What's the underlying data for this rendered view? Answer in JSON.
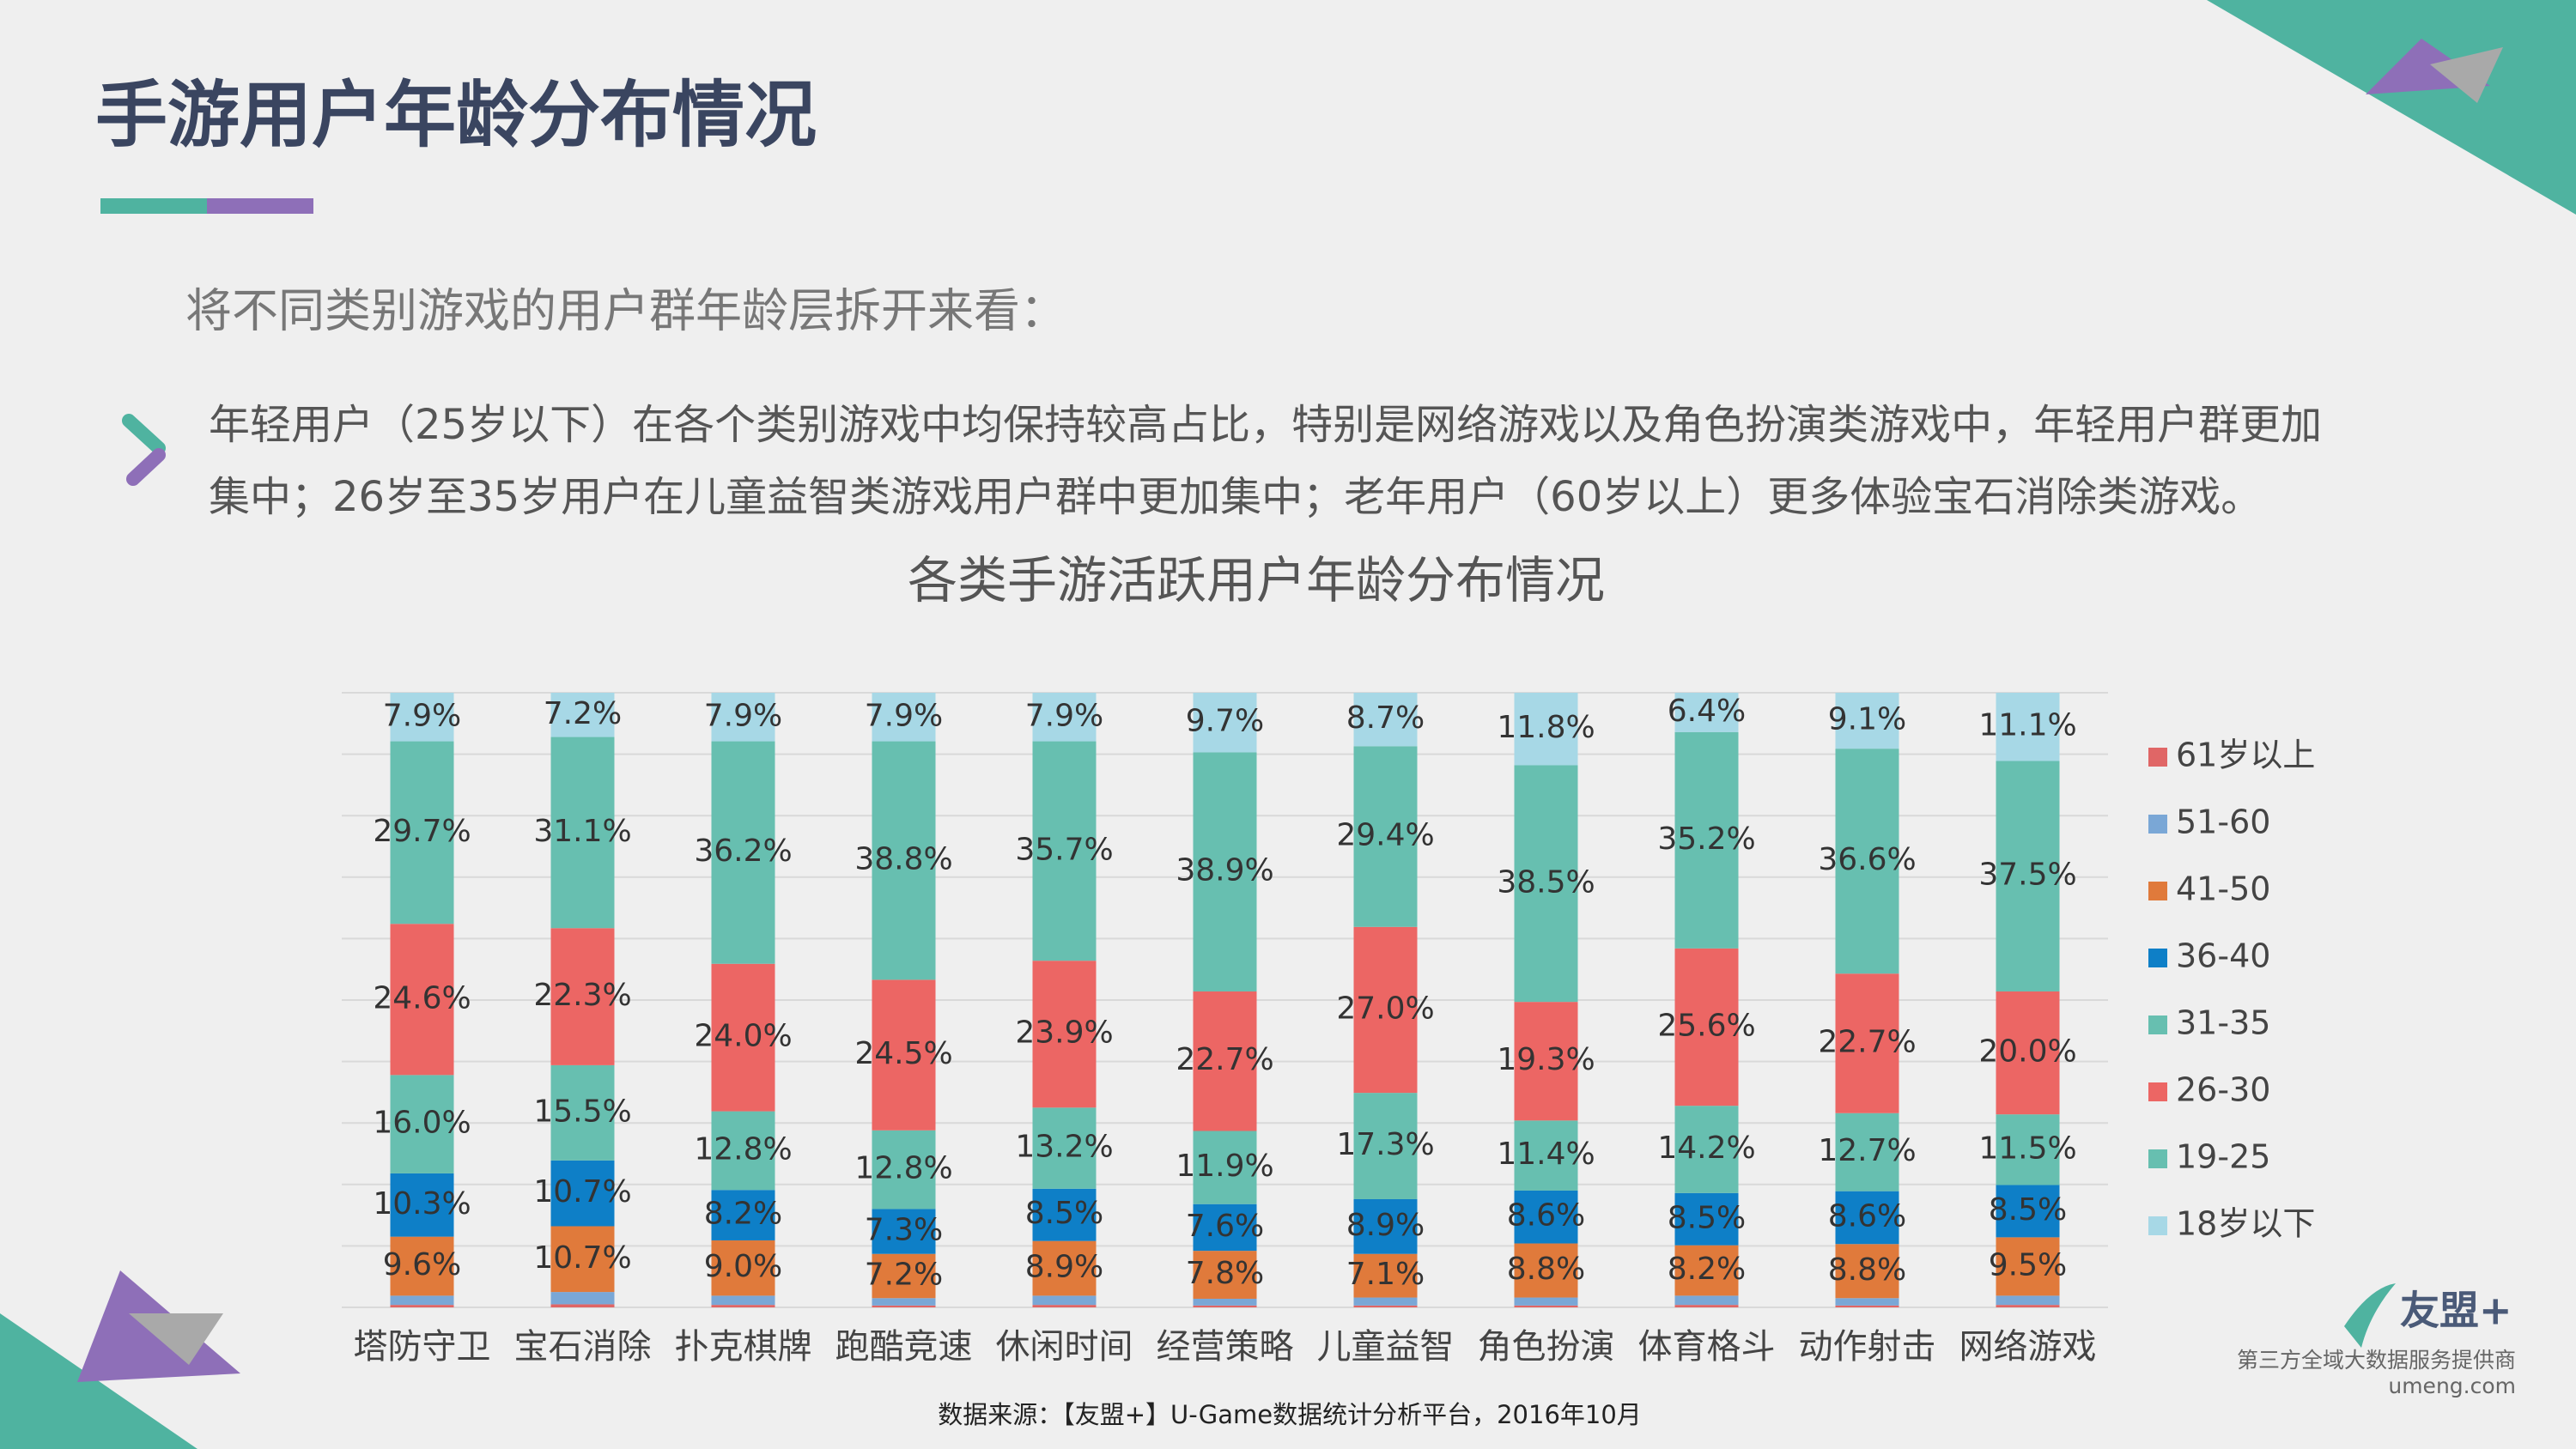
{
  "header": {
    "title": "手游用户年龄分布情况"
  },
  "subtitle": "将不同类别游戏的用户群年龄层拆开来看：",
  "bullet": {
    "lines": [
      "年轻用户（25岁以下）在各个类别游戏中均保持较高占比，特别是网络游戏以及角色扮演类游戏中，年轻用户群更加",
      "集中；26岁至35岁用户在儿童益智类游戏用户群中更加集中；老年用户（60岁以上）更多体验宝石消除类游戏。"
    ]
  },
  "chart_data": {
    "type": "bar",
    "stacked": true,
    "title": "各类手游活跃用户年龄分布情况",
    "categories": [
      "塔防守卫",
      "宝石消除",
      "扑克棋牌",
      "跑酷竞速",
      "休闲时间",
      "经营策略",
      "儿童益智",
      "角色扮演",
      "体育格斗",
      "动作射击",
      "网络游戏"
    ],
    "series": [
      {
        "name": "61岁以上",
        "color": "#e06666",
        "values": [
          0.4,
          0.5,
          0.4,
          0.3,
          0.4,
          0.3,
          0.3,
          0.3,
          0.4,
          0.3,
          0.4
        ]
      },
      {
        "name": "51-60",
        "color": "#7aa7d6",
        "values": [
          1.5,
          2.0,
          1.5,
          1.2,
          1.5,
          1.1,
          1.3,
          1.3,
          1.5,
          1.2,
          1.5
        ]
      },
      {
        "name": "41-50",
        "color": "#e07a3b",
        "values": [
          9.6,
          10.7,
          9.0,
          7.2,
          8.9,
          7.8,
          7.1,
          8.8,
          8.2,
          8.8,
          9.5
        ],
        "value_labels": [
          "9.6%",
          "10.7%",
          "9.0%",
          "7.2%",
          "8.9%",
          "7.8%",
          "7.1%",
          "8.8%",
          "8.2%",
          "8.8%",
          "9.5%"
        ]
      },
      {
        "name": "36-40",
        "color": "#0e7fc7",
        "values": [
          10.3,
          10.7,
          8.2,
          7.3,
          8.5,
          7.6,
          8.9,
          8.6,
          8.5,
          8.6,
          8.5
        ],
        "value_labels": [
          "10.3%",
          "10.7%",
          "8.2%",
          "7.3%",
          "8.5%",
          "7.6%",
          "8.9%",
          "8.6%",
          "8.5%",
          "8.6%",
          "8.5%"
        ]
      },
      {
        "name": "31-35",
        "color": "#67bfb0",
        "values": [
          16.0,
          15.5,
          12.8,
          12.8,
          13.2,
          11.9,
          17.3,
          11.4,
          14.2,
          12.7,
          11.5
        ],
        "value_labels": [
          "16.0%",
          "15.5%",
          "12.8%",
          "12.8%",
          "13.2%",
          "11.9%",
          "17.3%",
          "11.4%",
          "14.2%",
          "12.7%",
          "11.5%"
        ]
      },
      {
        "name": "26-30",
        "color": "#ec6664",
        "values": [
          24.6,
          22.3,
          24.0,
          24.5,
          23.9,
          22.7,
          27.0,
          19.3,
          25.6,
          22.7,
          20.0
        ],
        "value_labels": [
          "24.6%",
          "22.3%",
          "24.0%",
          "24.5%",
          "23.9%",
          "22.7%",
          "27.0%",
          "19.3%",
          "25.6%",
          "22.7%",
          "20.0%"
        ]
      },
      {
        "name": "19-25",
        "color": "#67bfb0",
        "values": [
          29.7,
          31.1,
          36.2,
          38.8,
          35.7,
          38.9,
          29.4,
          38.5,
          35.2,
          36.6,
          37.5
        ],
        "value_labels": [
          "29.7%",
          "31.1%",
          "36.2%",
          "38.8%",
          "35.7%",
          "38.9%",
          "29.4%",
          "38.5%",
          "35.2%",
          "36.6%",
          "37.5%"
        ]
      },
      {
        "name": "18岁以下",
        "color": "#a7d8e6",
        "values": [
          7.9,
          7.2,
          7.9,
          7.9,
          7.9,
          9.7,
          8.7,
          11.8,
          6.4,
          9.1,
          11.1
        ],
        "value_labels": [
          "7.9%",
          "7.2%",
          "7.9%",
          "7.9%",
          "7.9%",
          "9.7%",
          "8.7%",
          "11.8%",
          "6.4%",
          "9.1%",
          "11.1%"
        ]
      }
    ],
    "ylim": [
      0,
      100
    ],
    "yticks": [
      0,
      10,
      20,
      30,
      40,
      50,
      60,
      70,
      80,
      90,
      100
    ],
    "grid": true,
    "legend": "right"
  },
  "source": "数据来源：【友盟+】U-Game数据统计分析平台，2016年10月",
  "logo": {
    "brand": "友盟+",
    "tagline": "第三方全域大数据服务提供商",
    "url": "umeng.com"
  }
}
